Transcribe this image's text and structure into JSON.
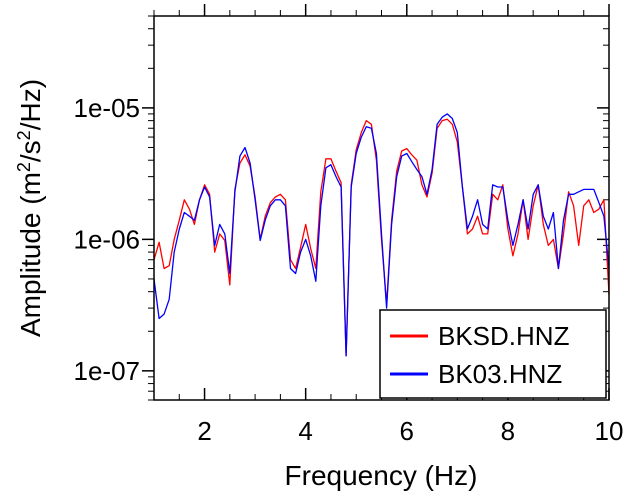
{
  "chart_data": {
    "type": "line",
    "xlabel": "Frequency (Hz)",
    "ylabel_main": "Amplitude (m",
    "ylabel_sup1": "2",
    "ylabel_mid": "/s",
    "ylabel_sup2": "2",
    "ylabel_end": "/Hz)",
    "x_scale": "linear",
    "y_scale": "log",
    "xlim": [
      1,
      10
    ],
    "ylim": [
      6e-08,
      5e-05
    ],
    "x_ticks": [
      2,
      4,
      6,
      8,
      10
    ],
    "x_tick_labels": [
      "2",
      "4",
      "6",
      "8",
      "10"
    ],
    "y_ticks": [
      1e-07,
      1e-06,
      1e-05
    ],
    "y_tick_labels": [
      "1e-07",
      "1e-06",
      "1e-05"
    ],
    "grid": false,
    "legend_position": "bottom-right",
    "series": [
      {
        "name": "BKSD.HNZ",
        "color": "#ff0000",
        "x": [
          1.0,
          1.1,
          1.2,
          1.3,
          1.4,
          1.5,
          1.6,
          1.7,
          1.8,
          1.9,
          2.0,
          2.1,
          2.2,
          2.3,
          2.4,
          2.5,
          2.6,
          2.7,
          2.8,
          2.9,
          3.0,
          3.1,
          3.2,
          3.3,
          3.4,
          3.5,
          3.6,
          3.7,
          3.8,
          3.9,
          4.0,
          4.1,
          4.2,
          4.3,
          4.4,
          4.5,
          4.6,
          4.7,
          4.8,
          4.9,
          5.0,
          5.1,
          5.2,
          5.3,
          5.4,
          5.5,
          5.6,
          5.7,
          5.8,
          5.9,
          6.0,
          6.1,
          6.2,
          6.3,
          6.4,
          6.5,
          6.6,
          6.7,
          6.8,
          6.9,
          7.0,
          7.1,
          7.2,
          7.3,
          7.4,
          7.5,
          7.6,
          7.7,
          7.8,
          7.9,
          8.0,
          8.1,
          8.2,
          8.3,
          8.4,
          8.5,
          8.6,
          8.7,
          8.8,
          8.9,
          9.0,
          9.1,
          9.2,
          9.3,
          9.4,
          9.5,
          9.6,
          9.7,
          9.8,
          9.9,
          10.0
        ],
        "y": [
          7e-07,
          9.5e-07,
          6e-07,
          6.3e-07,
          1e-06,
          1.4e-06,
          2e-06,
          1.7e-06,
          1.3e-06,
          2e-06,
          2.6e-06,
          2.2e-06,
          8e-07,
          1.1e-06,
          9.8e-07,
          4.5e-07,
          2.4e-06,
          3.8e-06,
          4.4e-06,
          3.6e-06,
          2.1e-06,
          1e-06,
          1.5e-06,
          1.9e-06,
          2.1e-06,
          2.2e-06,
          2e-06,
          7e-07,
          6e-07,
          8.7e-07,
          1.3e-06,
          8.5e-07,
          6e-07,
          2.3e-06,
          4.1e-06,
          4.1e-06,
          3.3e-06,
          2.7e-06,
          1.3e-07,
          2.6e-06,
          4.8e-06,
          6.5e-06,
          8e-06,
          7.5e-06,
          4e-06,
          1e-06,
          3.2e-07,
          1.4e-06,
          3.3e-06,
          4.7e-06,
          4.9e-06,
          4.4e-06,
          4e-06,
          2.6e-06,
          2.1e-06,
          3.2e-06,
          7e-06,
          8e-06,
          8.2e-06,
          7.5e-06,
          5.5e-06,
          2.5e-06,
          1.1e-06,
          1.2e-06,
          1.5e-06,
          1.1e-06,
          1.1e-06,
          2.2e-06,
          2e-06,
          2.6e-06,
          1.2e-06,
          7.5e-07,
          1.1e-06,
          2e-06,
          1e-06,
          1.8e-06,
          2.6e-06,
          1.3e-06,
          9e-07,
          1e-06,
          6e-07,
          1.1e-06,
          2.3e-06,
          1.8e-06,
          9e-07,
          1.8e-06,
          2e-06,
          1.6e-06,
          1.7e-06,
          2e-06,
          3.8e-07
        ]
      },
      {
        "name": "BK03.HNZ",
        "color": "#0000ff",
        "x": [
          1.0,
          1.1,
          1.2,
          1.3,
          1.4,
          1.5,
          1.6,
          1.7,
          1.8,
          1.9,
          2.0,
          2.1,
          2.2,
          2.3,
          2.4,
          2.5,
          2.6,
          2.7,
          2.8,
          2.9,
          3.0,
          3.1,
          3.2,
          3.3,
          3.4,
          3.5,
          3.6,
          3.7,
          3.8,
          3.9,
          4.0,
          4.1,
          4.2,
          4.3,
          4.4,
          4.5,
          4.6,
          4.7,
          4.8,
          4.9,
          5.0,
          5.1,
          5.2,
          5.3,
          5.4,
          5.5,
          5.6,
          5.7,
          5.8,
          5.9,
          6.0,
          6.1,
          6.2,
          6.3,
          6.4,
          6.5,
          6.6,
          6.7,
          6.8,
          6.9,
          7.0,
          7.1,
          7.2,
          7.3,
          7.4,
          7.5,
          7.6,
          7.7,
          7.8,
          7.9,
          8.0,
          8.1,
          8.2,
          8.3,
          8.4,
          8.5,
          8.6,
          8.7,
          8.8,
          8.9,
          9.0,
          9.1,
          9.2,
          9.3,
          9.4,
          9.5,
          9.6,
          9.7,
          9.8,
          9.9,
          10.0
        ],
        "y": [
          5e-07,
          2.5e-07,
          2.7e-07,
          3.5e-07,
          8e-07,
          1.2e-06,
          1.6e-06,
          1.5e-06,
          1.4e-06,
          2e-06,
          2.5e-06,
          2.1e-06,
          9e-07,
          1.3e-06,
          1.1e-06,
          5.5e-07,
          2.3e-06,
          4.3e-06,
          5e-06,
          3.8e-06,
          2e-06,
          9.8e-07,
          1.4e-06,
          1.8e-06,
          2e-06,
          2e-06,
          1.8e-06,
          6e-07,
          5.5e-07,
          8e-07,
          1e-06,
          7.5e-07,
          4.8e-07,
          1.8e-06,
          3.5e-06,
          3.7e-06,
          3e-06,
          2.5e-06,
          1.3e-07,
          2.5e-06,
          4.5e-06,
          6e-06,
          7.2e-06,
          7e-06,
          4.5e-06,
          1.1e-06,
          3e-07,
          1.3e-06,
          3e-06,
          4.3e-06,
          4.5e-06,
          3.9e-06,
          3.4e-06,
          3e-06,
          2.2e-06,
          3.4e-06,
          7.5e-06,
          8.5e-06,
          9e-06,
          8.3e-06,
          6.5e-06,
          2.5e-06,
          1.2e-06,
          1.5e-06,
          2e-06,
          1.3e-06,
          1.2e-06,
          2.6e-06,
          2.5e-06,
          2.5e-06,
          1.4e-06,
          9e-07,
          1.3e-06,
          2e-06,
          1.2e-06,
          2.2e-06,
          2.6e-06,
          1.5e-06,
          1.2e-06,
          1.6e-06,
          6e-07,
          1.4e-06,
          2.2e-06,
          2.2e-06,
          2.3e-06,
          2.4e-06,
          2.4e-06,
          2.4e-06,
          1.9e-06,
          1.5e-06,
          6e-07
        ]
      }
    ]
  }
}
